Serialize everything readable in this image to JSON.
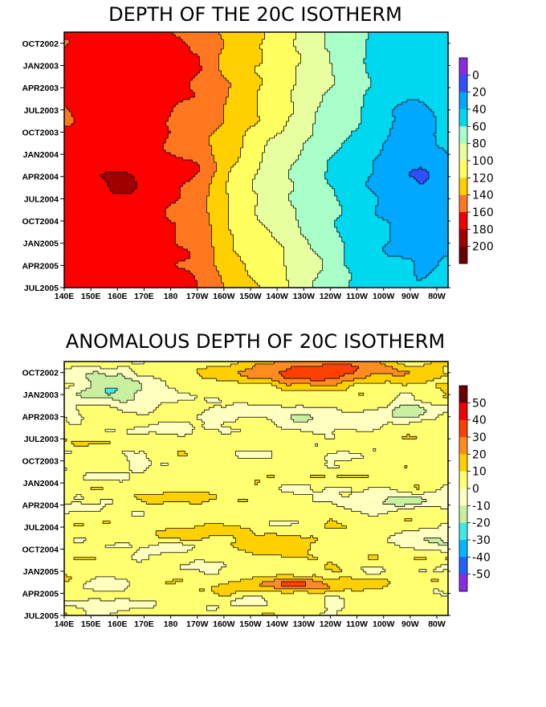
{
  "chart_data": [
    {
      "type": "heatmap",
      "title": "DEPTH OF THE 20C ISOTHERM",
      "x_tick_labels": [
        "140E",
        "150E",
        "160E",
        "170E",
        "180",
        "170W",
        "160W",
        "150W",
        "140W",
        "130W",
        "120W",
        "110W",
        "100W",
        "90W",
        "80W"
      ],
      "y_tick_labels": [
        "OCT2002",
        "JAN2003",
        "APR2003",
        "JUL2003",
        "OCT2003",
        "JAN2004",
        "APR2004",
        "JUL2004",
        "OCT2004",
        "JAN2005",
        "APR2005",
        "JUL2005"
      ],
      "legend": {
        "labels": [
          "0",
          "20",
          "40",
          "60",
          "80",
          "100",
          "120",
          "140",
          "160",
          "180",
          "200"
        ],
        "colors": [
          "#8a2be2",
          "#3050ff",
          "#00a8ff",
          "#00d8f0",
          "#a8ffc8",
          "#e8ffa0",
          "#ffff60",
          "#ffd000",
          "#ff7820",
          "#f00000",
          "#a00000",
          "#6b0000"
        ]
      },
      "east_edge_label": "80W",
      "band_depths_x_tick_nodes": [
        165,
        165,
        168,
        168,
        160,
        150,
        128,
        112,
        98,
        80,
        65,
        52,
        42,
        38,
        45
      ]
    },
    {
      "type": "heatmap",
      "title": "ANOMALOUS DEPTH OF 20C ISOTHERM",
      "x_tick_labels": [
        "140E",
        "150E",
        "160E",
        "170E",
        "180",
        "170W",
        "160W",
        "150W",
        "140W",
        "130W",
        "120W",
        "110W",
        "100W",
        "90W",
        "80W"
      ],
      "y_tick_labels": [
        "OCT2002",
        "JAN2003",
        "APR2003",
        "JUL2003",
        "OCT2003",
        "JAN2004",
        "APR2004",
        "JUL2004",
        "OCT2004",
        "JAN2005",
        "APR2005",
        "JUL2005"
      ],
      "legend": {
        "labels": [
          "50",
          "40",
          "30",
          "20",
          "10",
          "0",
          "-10",
          "-20",
          "-30",
          "-40",
          "-50"
        ],
        "colors": [
          "#6b0000",
          "#f00000",
          "#ff4000",
          "#ff8c20",
          "#ffd000",
          "#ffff70",
          "#ffffc0",
          "#c8f0a0",
          "#40e8e8",
          "#00b8ff",
          "#2060ff",
          "#8a2be2"
        ]
      }
    }
  ]
}
